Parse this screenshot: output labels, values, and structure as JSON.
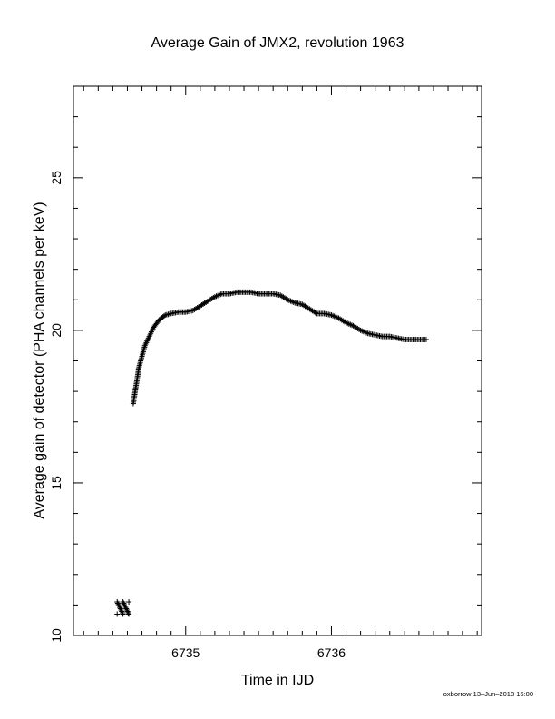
{
  "chart_data": {
    "type": "scatter",
    "title": "Average Gain of JMX2, revolution 1963",
    "xlabel": "Time in IJD",
    "ylabel": "Average gain of detector (PHA channels per keV)",
    "xlim": [
      6734.23,
      6737.03
    ],
    "ylim": [
      10,
      28
    ],
    "x_major_ticks": [
      6735,
      6736
    ],
    "x_tick_labels": [
      "6735",
      "6736"
    ],
    "x_minor_step": 0.1,
    "y_major_ticks": [
      10,
      15,
      20,
      25
    ],
    "y_tick_labels": [
      "10",
      "15",
      "20",
      "25"
    ],
    "y_minor_step": 1,
    "grid": false,
    "legend": "none",
    "marker": "plus",
    "marker_color": "#000000",
    "series": [
      {
        "x": [
          6734.53,
          6734.53,
          6734.57,
          6734.57,
          6734.61,
          6734.61,
          6734.64,
          6734.65,
          6734.66,
          6734.67,
          6734.68,
          6734.7,
          6734.72,
          6734.75,
          6734.78,
          6734.82,
          6734.86,
          6734.9,
          6734.95,
          6735.0,
          6735.05,
          6735.1,
          6735.15,
          6735.2,
          6735.25,
          6735.3,
          6735.35,
          6735.4,
          6735.45,
          6735.5,
          6735.55,
          6735.6,
          6735.65,
          6735.7,
          6735.75,
          6735.8,
          6735.85,
          6735.9,
          6735.95,
          6736.0,
          6736.05,
          6736.1,
          6736.15,
          6736.2,
          6736.25,
          6736.3,
          6736.35,
          6736.4,
          6736.45,
          6736.5,
          6736.55,
          6736.6,
          6736.65
        ],
        "y": [
          10.7,
          11.1,
          10.7,
          11.1,
          10.7,
          11.1,
          17.6,
          17.9,
          18.2,
          18.5,
          18.8,
          19.15,
          19.5,
          19.8,
          20.1,
          20.35,
          20.5,
          20.55,
          20.6,
          20.6,
          20.65,
          20.8,
          20.95,
          21.1,
          21.2,
          21.2,
          21.25,
          21.25,
          21.25,
          21.2,
          21.2,
          21.2,
          21.15,
          21.0,
          20.9,
          20.85,
          20.7,
          20.55,
          20.55,
          20.5,
          20.4,
          20.25,
          20.15,
          20.0,
          19.9,
          19.85,
          19.8,
          19.8,
          19.75,
          19.7,
          19.7,
          19.7,
          19.7
        ]
      }
    ]
  },
  "footer": {
    "credit": "oxborrow 13–Jun–2018 16:00"
  }
}
